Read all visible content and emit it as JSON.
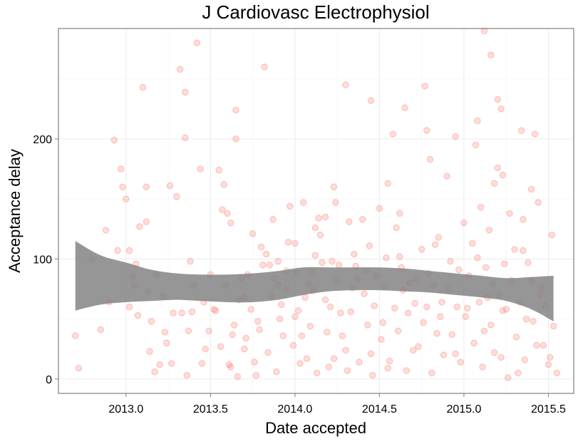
{
  "chart_data": {
    "type": "scatter",
    "title": "J Cardiovasc Electrophysiol",
    "xlabel": "Date accepted",
    "ylabel": "Acceptance delay",
    "xlim": [
      2012.6,
      2015.65
    ],
    "ylim": [
      -12,
      292
    ],
    "x_ticks": [
      2013.0,
      2013.5,
      2014.0,
      2014.5,
      2015.0,
      2015.5
    ],
    "x_tick_labels": [
      "2013.0",
      "2013.5",
      "2014.0",
      "2014.5",
      "2015.0",
      "2015.5"
    ],
    "y_ticks": [
      0,
      100,
      200
    ],
    "y_tick_labels": [
      "0",
      "100",
      "200"
    ],
    "grid": true,
    "colors": {
      "point_fill": "#f8766d",
      "point_stroke": "#f8766d",
      "ribbon": "#7f7f7f",
      "panel_border": "#7f7f7f",
      "grid": "#ebebeb"
    },
    "point_opacity": 0.25,
    "smooth_band": {
      "x": [
        2012.7,
        2012.85,
        2013.0,
        2013.15,
        2013.3,
        2013.45,
        2013.6,
        2013.75,
        2013.9,
        2014.05,
        2014.2,
        2014.35,
        2014.5,
        2014.65,
        2014.8,
        2014.95,
        2015.1,
        2015.25,
        2015.4,
        2015.53
      ],
      "lower": [
        57,
        62,
        64,
        65,
        66,
        65,
        64,
        64,
        66,
        70,
        73,
        74,
        74,
        73,
        72,
        70,
        68,
        65,
        58,
        48
      ],
      "upper": [
        115,
        103,
        97,
        91,
        88,
        87,
        87,
        88,
        90,
        93,
        93,
        93,
        93,
        92,
        90,
        88,
        86,
        84,
        85,
        86
      ]
    },
    "series": [
      {
        "points": [
          [
            2012.7,
            36
          ],
          [
            2012.72,
            9
          ],
          [
            2012.8,
            100
          ],
          [
            2012.85,
            41
          ],
          [
            2012.88,
            124
          ],
          [
            2012.9,
            64
          ],
          [
            2012.93,
            199
          ],
          [
            2012.95,
            107
          ],
          [
            2012.97,
            175
          ],
          [
            2012.98,
            160
          ],
          [
            2013.0,
            150
          ],
          [
            2013.02,
            107
          ],
          [
            2013.04,
            85
          ],
          [
            2013.05,
            78
          ],
          [
            2013.07,
            53
          ],
          [
            2013.08,
            127
          ],
          [
            2013.1,
            243
          ],
          [
            2013.12,
            131
          ],
          [
            2013.12,
            160
          ],
          [
            2013.13,
            73
          ],
          [
            2013.15,
            48
          ],
          [
            2013.17,
            6
          ],
          [
            2013.2,
            12
          ],
          [
            2013.22,
            69
          ],
          [
            2013.24,
            30
          ],
          [
            2013.26,
            161
          ],
          [
            2013.28,
            55
          ],
          [
            2013.3,
            152
          ],
          [
            2013.32,
            258
          ],
          [
            2013.33,
            55
          ],
          [
            2013.35,
            239
          ],
          [
            2013.35,
            201
          ],
          [
            2013.37,
            40
          ],
          [
            2013.38,
            98
          ],
          [
            2013.4,
            78
          ],
          [
            2013.42,
            280
          ],
          [
            2013.44,
            175
          ],
          [
            2013.45,
            13
          ],
          [
            2013.47,
            25
          ],
          [
            2013.5,
            87
          ],
          [
            2013.52,
            58
          ],
          [
            2013.55,
            174
          ],
          [
            2013.57,
            141
          ],
          [
            2013.58,
            162
          ],
          [
            2013.6,
            138
          ],
          [
            2013.62,
            130
          ],
          [
            2013.63,
            37
          ],
          [
            2013.65,
            224
          ],
          [
            2013.65,
            200
          ],
          [
            2013.67,
            66
          ],
          [
            2013.7,
            68
          ],
          [
            2013.72,
            87
          ],
          [
            2013.75,
            121
          ],
          [
            2013.77,
            3
          ],
          [
            2013.8,
            110
          ],
          [
            2013.82,
            260
          ],
          [
            2013.83,
            104
          ],
          [
            2013.85,
            95
          ],
          [
            2013.87,
            133
          ],
          [
            2013.88,
            84
          ],
          [
            2013.9,
            78
          ],
          [
            2013.92,
            62
          ],
          [
            2013.95,
            90
          ],
          [
            2013.97,
            144
          ],
          [
            2014.0,
            113
          ],
          [
            2014.02,
            57
          ],
          [
            2014.04,
            36
          ],
          [
            2014.05,
            147
          ],
          [
            2014.07,
            17
          ],
          [
            2014.08,
            79
          ],
          [
            2014.1,
            89
          ],
          [
            2014.12,
            103
          ],
          [
            2014.14,
            134
          ],
          [
            2014.15,
            120
          ],
          [
            2014.18,
            66
          ],
          [
            2014.2,
            10
          ],
          [
            2014.22,
            98
          ],
          [
            2014.24,
            147
          ],
          [
            2014.25,
            82
          ],
          [
            2014.27,
            55
          ],
          [
            2014.3,
            24
          ],
          [
            2014.32,
            131
          ],
          [
            2014.34,
            76
          ],
          [
            2014.35,
            104
          ],
          [
            2014.37,
            83
          ],
          [
            2014.4,
            133
          ],
          [
            2014.42,
            90
          ],
          [
            2014.44,
            111
          ],
          [
            2014.45,
            21
          ],
          [
            2014.47,
            61
          ],
          [
            2014.5,
            142
          ],
          [
            2014.52,
            47
          ],
          [
            2014.53,
            77
          ],
          [
            2014.55,
            9
          ],
          [
            2014.58,
            204
          ],
          [
            2014.6,
            126
          ],
          [
            2014.62,
            102
          ],
          [
            2014.64,
            74
          ],
          [
            2014.65,
            226
          ],
          [
            2014.67,
            55
          ],
          [
            2014.7,
            24
          ],
          [
            2014.72,
            83
          ],
          [
            2014.75,
            108
          ],
          [
            2014.77,
            244
          ],
          [
            2014.78,
            60
          ],
          [
            2014.8,
            183
          ],
          [
            2014.82,
            78
          ],
          [
            2014.84,
            38
          ],
          [
            2014.85,
            118
          ],
          [
            2014.87,
            64
          ],
          [
            2014.9,
            169
          ],
          [
            2014.92,
            98
          ],
          [
            2014.95,
            21
          ],
          [
            2014.97,
            91
          ],
          [
            2015.0,
            130
          ],
          [
            2015.02,
            59
          ],
          [
            2015.05,
            113
          ],
          [
            2015.07,
            195
          ],
          [
            2015.08,
            101
          ],
          [
            2015.1,
            143
          ],
          [
            2015.12,
            40
          ],
          [
            2015.14,
            68
          ],
          [
            2015.15,
            124
          ],
          [
            2015.17,
            79
          ],
          [
            2015.2,
            176
          ],
          [
            2015.22,
            18
          ],
          [
            2015.24,
            96
          ],
          [
            2015.25,
            58
          ],
          [
            2015.27,
            138
          ],
          [
            2015.3,
            108
          ],
          [
            2015.32,
            5
          ],
          [
            2015.34,
            207
          ],
          [
            2015.35,
            133
          ],
          [
            2015.37,
            50
          ],
          [
            2015.4,
            82
          ],
          [
            2015.42,
            204
          ],
          [
            2015.44,
            147
          ],
          [
            2015.45,
            70
          ],
          [
            2015.47,
            28
          ],
          [
            2015.5,
            12
          ],
          [
            2015.52,
            120
          ],
          [
            2015.53,
            44
          ],
          [
            2015.55,
            5
          ],
          [
            2013.02,
            60
          ],
          [
            2013.06,
            96
          ],
          [
            2013.14,
            23
          ],
          [
            2013.18,
            87
          ],
          [
            2013.23,
            39
          ],
          [
            2013.27,
            13
          ],
          [
            2013.36,
            3
          ],
          [
            2013.39,
            56
          ],
          [
            2013.46,
            64
          ],
          [
            2013.49,
            40
          ],
          [
            2013.53,
            57
          ],
          [
            2013.56,
            27
          ],
          [
            2013.59,
            78
          ],
          [
            2013.61,
            12
          ],
          [
            2013.64,
            45
          ],
          [
            2013.66,
            2
          ],
          [
            2013.68,
            84
          ],
          [
            2013.71,
            34
          ],
          [
            2013.74,
            58
          ],
          [
            2013.76,
            14
          ],
          [
            2013.79,
            41
          ],
          [
            2013.81,
            95
          ],
          [
            2013.84,
            22
          ],
          [
            2013.86,
            69
          ],
          [
            2013.89,
            6
          ],
          [
            2013.91,
            50
          ],
          [
            2013.93,
            36
          ],
          [
            2013.96,
            114
          ],
          [
            2013.99,
            28
          ],
          [
            2014.01,
            88
          ],
          [
            2014.03,
            13
          ],
          [
            2014.06,
            68
          ],
          [
            2014.09,
            44
          ],
          [
            2014.11,
            74
          ],
          [
            2014.13,
            5
          ],
          [
            2014.16,
            97
          ],
          [
            2014.19,
            39
          ],
          [
            2014.21,
            60
          ],
          [
            2014.23,
            17
          ],
          [
            2014.26,
            95
          ],
          [
            2014.28,
            36
          ],
          [
            2014.31,
            7
          ],
          [
            2014.33,
            56
          ],
          [
            2014.36,
            94
          ],
          [
            2014.38,
            14
          ],
          [
            2014.41,
            71
          ],
          [
            2014.43,
            45
          ],
          [
            2014.46,
            3
          ],
          [
            2014.48,
            86
          ],
          [
            2014.51,
            33
          ],
          [
            2014.54,
            101
          ],
          [
            2014.56,
            15
          ],
          [
            2014.59,
            59
          ],
          [
            2014.61,
            40
          ],
          [
            2014.63,
            93
          ],
          [
            2014.66,
            7
          ],
          [
            2014.68,
            80
          ],
          [
            2014.71,
            63
          ],
          [
            2014.73,
            27
          ],
          [
            2014.76,
            47
          ],
          [
            2014.79,
            88
          ],
          [
            2014.81,
            5
          ],
          [
            2014.83,
            112
          ],
          [
            2014.86,
            52
          ],
          [
            2014.88,
            20
          ],
          [
            2014.91,
            75
          ],
          [
            2014.93,
            37
          ],
          [
            2014.96,
            60
          ],
          [
            2014.98,
            14
          ],
          [
            2015.01,
            52
          ],
          [
            2015.03,
            86
          ],
          [
            2015.06,
            30
          ],
          [
            2015.09,
            64
          ],
          [
            2015.11,
            10
          ],
          [
            2015.13,
            93
          ],
          [
            2015.16,
            45
          ],
          [
            2015.18,
            22
          ],
          [
            2015.21,
            70
          ],
          [
            2015.23,
            57
          ],
          [
            2015.26,
            1
          ],
          [
            2015.28,
            82
          ],
          [
            2015.31,
            35
          ],
          [
            2015.33,
            64
          ],
          [
            2015.36,
            16
          ],
          [
            2015.38,
            97
          ],
          [
            2015.41,
            48
          ],
          [
            2015.43,
            28
          ],
          [
            2015.46,
            76
          ],
          [
            2015.48,
            61
          ],
          [
            2015.51,
            18
          ],
          [
            2014.3,
            245
          ],
          [
            2014.45,
            232
          ],
          [
            2014.78,
            207
          ],
          [
            2014.95,
            202
          ],
          [
            2015.08,
            215
          ],
          [
            2015.12,
            290
          ],
          [
            2015.16,
            270
          ],
          [
            2015.2,
            233
          ],
          [
            2015.22,
            225
          ],
          [
            2015.18,
            163
          ],
          [
            2015.23,
            170
          ],
          [
            2015.35,
            107
          ],
          [
            2015.4,
            158
          ],
          [
            2014.62,
            138
          ],
          [
            2014.55,
            163
          ],
          [
            2014.18,
            135
          ],
          [
            2014.23,
            160
          ],
          [
            2014.12,
            126
          ],
          [
            2013.9,
            98
          ],
          [
            2013.95,
            75
          ],
          [
            2014.0,
            52
          ],
          [
            2013.78,
            48
          ],
          [
            2013.7,
            25
          ],
          [
            2013.62,
            10
          ]
        ]
      }
    ]
  }
}
